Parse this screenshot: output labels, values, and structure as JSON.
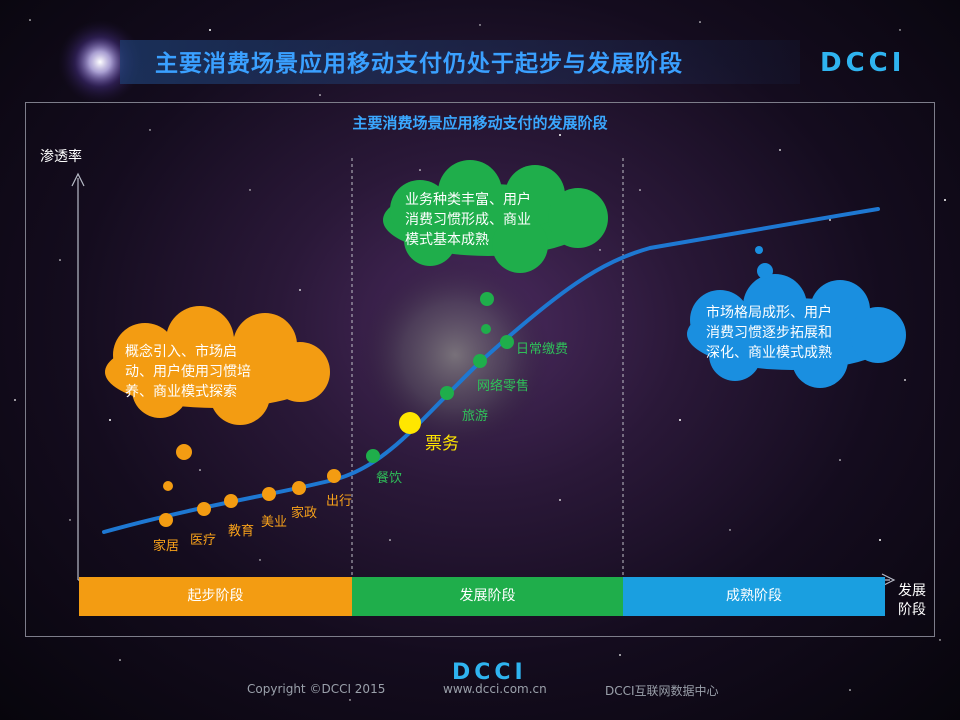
{
  "header": {
    "title": "主要消费场景应用移动支付仍处于起步与发展阶段",
    "logo": "DCCI"
  },
  "diagram": {
    "title": "主要消费场景应用移动支付的发展阶段",
    "y_axis_label": "渗透率",
    "x_axis_label_line1": "发展",
    "x_axis_label_line2": "阶段",
    "stages": [
      {
        "label": "起步阶段",
        "color": "#f39c12"
      },
      {
        "label": "发展阶段",
        "color": "#1fae4b"
      },
      {
        "label": "成熟阶段",
        "color": "#1a9fe0"
      }
    ],
    "clouds": {
      "startup": {
        "lines": [
          "概念引入、市场启",
          "动、用户使用习惯培",
          "养、商业模式探索"
        ],
        "color": "#f39c12"
      },
      "development": {
        "lines": [
          "业务种类丰富、用户",
          "消费习惯形成、商业",
          "模式基本成熟"
        ],
        "color": "#1fae4b"
      },
      "mature": {
        "lines": [
          "市场格局成形、用户",
          "消费习惯逐步拓展和",
          "深化、商业模式成熟"
        ],
        "color": "#1a8fe0"
      }
    },
    "scenarios": {
      "startup": [
        "家居",
        "医疗",
        "教育",
        "美业",
        "家政",
        "出行"
      ],
      "development": [
        "餐饮",
        "票务",
        "旅游",
        "网络零售",
        "日常缴费"
      ],
      "highlight": "票务"
    },
    "colors": {
      "curve": "#1e78d2",
      "axis": "#b8bcc8"
    }
  },
  "footer": {
    "copyright": "Copyright ©DCCI 2015",
    "website": "www.dcci.com.cn",
    "organization": "DCCI互联网数据中心",
    "logo": "DCCI"
  }
}
